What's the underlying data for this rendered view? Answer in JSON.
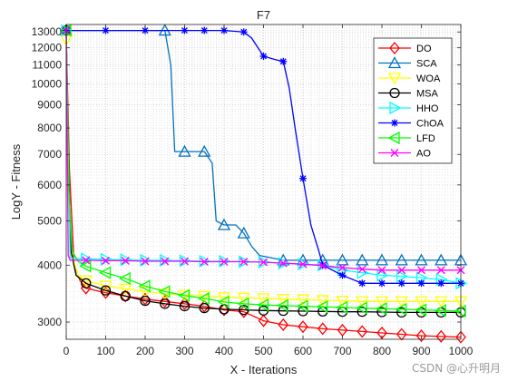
{
  "chart_data": {
    "type": "line",
    "title": "F7",
    "xlabel": "X - Iterations",
    "ylabel": "LogY - Fitness",
    "xlim": [
      0,
      1000
    ],
    "ylim": [
      2750,
      13500
    ],
    "yscale": "log",
    "grid": true,
    "minor_grid": true,
    "legend_position": "top-right",
    "xticks": [
      0,
      100,
      200,
      300,
      400,
      500,
      600,
      700,
      800,
      900,
      1000
    ],
    "yticks": [
      3000,
      4000,
      5000,
      6000,
      7000,
      8000,
      9000,
      10000,
      11000,
      12000,
      13000
    ],
    "series": [
      {
        "name": "DO",
        "color": "#ff0000",
        "marker": "diamond",
        "x": [
          0,
          8,
          20,
          35,
          50,
          100,
          150,
          200,
          250,
          300,
          350,
          400,
          450,
          500,
          550,
          600,
          650,
          700,
          750,
          800,
          850,
          900,
          950,
          1000
        ],
        "y": [
          13100,
          6500,
          4000,
          3700,
          3560,
          3480,
          3420,
          3370,
          3330,
          3290,
          3250,
          3190,
          3160,
          3020,
          2960,
          2930,
          2900,
          2880,
          2860,
          2840,
          2820,
          2800,
          2790,
          2780
        ]
      },
      {
        "name": "SCA",
        "color": "#0072bd",
        "marker": "triangle-up",
        "x": [
          0,
          250,
          265,
          275,
          300,
          350,
          370,
          380,
          400,
          430,
          450,
          470,
          490,
          520,
          550,
          600,
          650,
          700,
          750,
          800,
          850,
          900,
          950,
          1000
        ],
        "y": [
          13100,
          13100,
          11000,
          7100,
          7100,
          7100,
          6700,
          5000,
          4900,
          4900,
          4700,
          4400,
          4200,
          4150,
          4100,
          4100,
          4100,
          4100,
          4100,
          4100,
          4100,
          4100,
          4100,
          4100
        ]
      },
      {
        "name": "WOA",
        "color": "#ffff00",
        "marker": "triangle-down",
        "x": [
          0,
          6,
          15,
          30,
          50,
          100,
          150,
          200,
          250,
          300,
          350,
          400,
          450,
          500,
          550,
          600,
          650,
          700,
          750,
          800,
          850,
          900,
          950,
          1000
        ],
        "y": [
          12500,
          6000,
          4200,
          3800,
          3700,
          3600,
          3550,
          3500,
          3460,
          3440,
          3420,
          3400,
          3390,
          3380,
          3370,
          3360,
          3350,
          3340,
          3330,
          3330,
          3330,
          3330,
          3330,
          3330
        ]
      },
      {
        "name": "MSA",
        "color": "#000000",
        "marker": "circle",
        "x": [
          0,
          5,
          12,
          25,
          50,
          100,
          150,
          200,
          250,
          300,
          350,
          400,
          450,
          500,
          550,
          600,
          650,
          700,
          750,
          800,
          850,
          900,
          950,
          1000
        ],
        "y": [
          13100,
          7000,
          4300,
          3800,
          3650,
          3520,
          3420,
          3340,
          3290,
          3250,
          3220,
          3200,
          3190,
          3180,
          3175,
          3170,
          3165,
          3160,
          3160,
          3155,
          3150,
          3150,
          3150,
          3150
        ]
      },
      {
        "name": "HHO",
        "color": "#00ffff",
        "marker": "triangle-right",
        "x": [
          0,
          10,
          20,
          50,
          100,
          150,
          200,
          250,
          300,
          350,
          400,
          450,
          500,
          550,
          600,
          650,
          700,
          750,
          800,
          850,
          900,
          950,
          1000
        ],
        "y": [
          13100,
          4150,
          4140,
          4130,
          4120,
          4110,
          4100,
          4100,
          4090,
          4080,
          4080,
          4070,
          4060,
          4040,
          4020,
          4000,
          3900,
          3850,
          3800,
          3780,
          3750,
          3720,
          3650
        ]
      },
      {
        "name": "ChOA",
        "color": "#0000ff",
        "marker": "star",
        "x": [
          0,
          100,
          200,
          300,
          350,
          400,
          450,
          470,
          500,
          530,
          550,
          565,
          580,
          600,
          620,
          640,
          650,
          700,
          750,
          800,
          850,
          900,
          950,
          1000
        ],
        "y": [
          13100,
          13100,
          13100,
          13100,
          13100,
          13100,
          13000,
          12600,
          11500,
          11300,
          11200,
          9800,
          8000,
          6200,
          4900,
          4300,
          4000,
          3800,
          3650,
          3650,
          3650,
          3650,
          3650,
          3650
        ]
      },
      {
        "name": "LFD",
        "color": "#00ff00",
        "marker": "triangle-left",
        "x": [
          0,
          6,
          15,
          30,
          50,
          100,
          150,
          200,
          250,
          300,
          350,
          400,
          450,
          500,
          550,
          600,
          650,
          700,
          750,
          800,
          850,
          900,
          950,
          1000
        ],
        "y": [
          13100,
          6000,
          4300,
          4080,
          3980,
          3850,
          3740,
          3600,
          3500,
          3430,
          3380,
          3320,
          3290,
          3270,
          3260,
          3250,
          3240,
          3230,
          3220,
          3210,
          3200,
          3190,
          3180,
          3170
        ]
      },
      {
        "name": "AO",
        "color": "#ff00ff",
        "marker": "x",
        "x": [
          0,
          5,
          10,
          50,
          100,
          150,
          200,
          250,
          300,
          350,
          400,
          450,
          500,
          550,
          600,
          650,
          700,
          750,
          800,
          850,
          900,
          950,
          1000
        ],
        "y": [
          13100,
          4200,
          4100,
          4100,
          4090,
          4090,
          4080,
          4080,
          4080,
          4070,
          4070,
          4070,
          4060,
          4040,
          4020,
          3990,
          3950,
          3920,
          3900,
          3900,
          3900,
          3900,
          3900
        ]
      }
    ]
  },
  "watermark": "CSDN @心升明月"
}
